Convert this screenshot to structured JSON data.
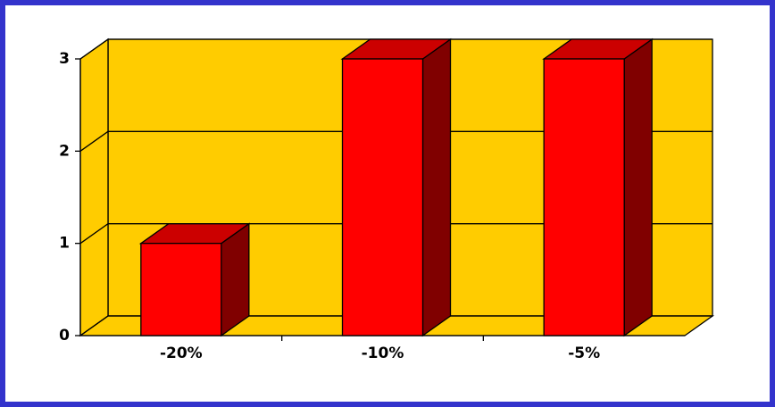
{
  "chart_data": {
    "type": "bar3d",
    "categories": [
      "-20%",
      "-10%",
      "-5%"
    ],
    "values": [
      1,
      3,
      3
    ],
    "color": "#ff0000",
    "ylim": [
      0,
      3
    ],
    "yticks": [
      0,
      1,
      2,
      3
    ],
    "grid": true
  }
}
